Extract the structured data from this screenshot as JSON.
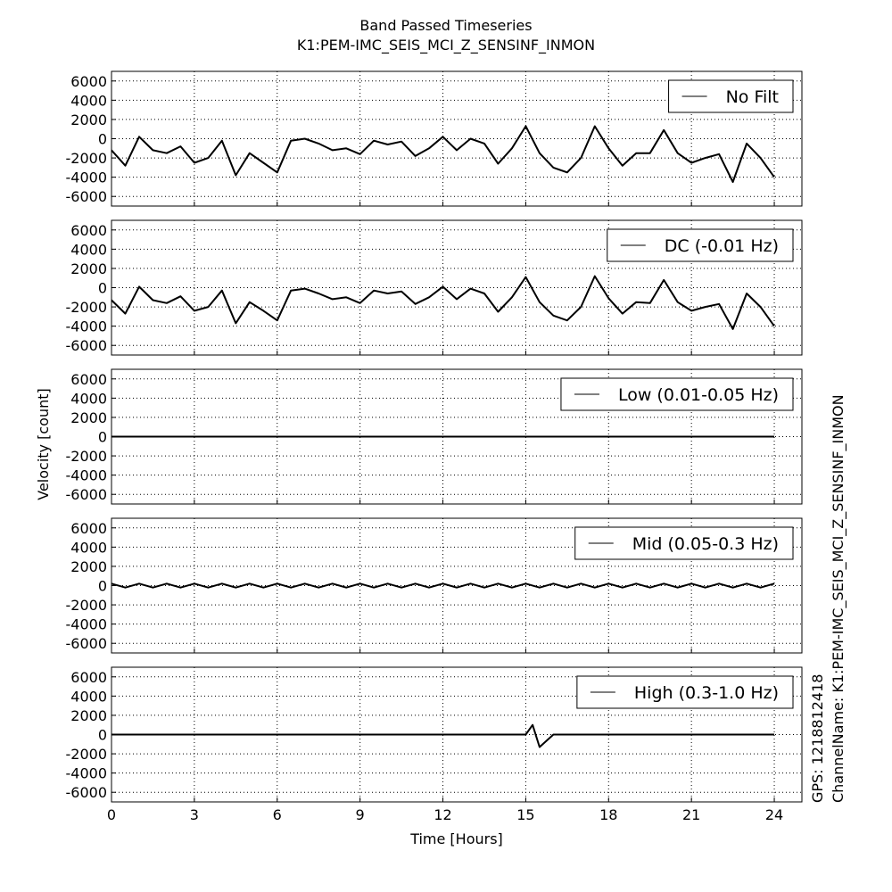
{
  "figure": {
    "title": "Band Passed Timeseries",
    "subtitle": "K1:PEM-IMC_SEIS_MCI_Z_SENSINF_INMON",
    "y_label": "Velocity [count]",
    "x_label": "Time [Hours]",
    "gps_label": "GPS: 1218812418",
    "channel_label": "ChannelName: K1:PEM-IMC_SEIS_MCI_Z_SENSINF_INMON"
  },
  "chart_data": [
    {
      "type": "line",
      "x": [
        0,
        0.5,
        1,
        1.5,
        2,
        2.5,
        3,
        3.5,
        4,
        4.5,
        5,
        5.5,
        6,
        6.5,
        7,
        7.5,
        8,
        8.5,
        9,
        9.5,
        10,
        10.5,
        11,
        11.5,
        12,
        12.5,
        13,
        13.5,
        14,
        14.5,
        15,
        15.5,
        16,
        16.5,
        17,
        17.5,
        18,
        18.5,
        19,
        19.5,
        20,
        20.5,
        21,
        21.5,
        22,
        22.5,
        23,
        23.5,
        24
      ],
      "series": [
        {
          "name": "No Filt",
          "color": "#000000",
          "values": [
            -1200,
            -2800,
            200,
            -1200,
            -1500,
            -800,
            -2500,
            -2000,
            -200,
            -3800,
            -1500,
            -2500,
            -3500,
            -200,
            0,
            -500,
            -1200,
            -1000,
            -1600,
            -200,
            -600,
            -300,
            -1800,
            -1000,
            200,
            -1200,
            0,
            -500,
            -2600,
            -1000,
            1300,
            -1500,
            -3000,
            -3500,
            -2000,
            1300,
            -1000,
            -2800,
            -1500,
            -1500,
            900,
            -1500,
            -2500,
            -2000,
            -1600,
            -4500,
            -500,
            -2000,
            -4000
          ]
        }
      ],
      "xlim": [
        0,
        25
      ],
      "xticks": [
        0,
        3,
        6,
        9,
        12,
        15,
        18,
        21,
        24
      ],
      "ylim": [
        -7000,
        7000
      ],
      "yticks": [
        -6000,
        -4000,
        -2000,
        0,
        2000,
        4000,
        6000
      ],
      "grid": true,
      "legend": "upper right"
    },
    {
      "type": "line",
      "x": [
        0,
        0.5,
        1,
        1.5,
        2,
        2.5,
        3,
        3.5,
        4,
        4.5,
        5,
        5.5,
        6,
        6.5,
        7,
        7.5,
        8,
        8.5,
        9,
        9.5,
        10,
        10.5,
        11,
        11.5,
        12,
        12.5,
        13,
        13.5,
        14,
        14.5,
        15,
        15.5,
        16,
        16.5,
        17,
        17.5,
        18,
        18.5,
        19,
        19.5,
        20,
        20.5,
        21,
        21.5,
        22,
        22.5,
        23,
        23.5,
        24
      ],
      "series": [
        {
          "name": "DC (-0.01 Hz)",
          "color": "#000000",
          "values": [
            -1300,
            -2700,
            100,
            -1300,
            -1600,
            -900,
            -2400,
            -2000,
            -300,
            -3700,
            -1500,
            -2400,
            -3400,
            -300,
            -100,
            -600,
            -1200,
            -1000,
            -1600,
            -300,
            -600,
            -400,
            -1700,
            -1000,
            100,
            -1200,
            -100,
            -600,
            -2500,
            -1000,
            1100,
            -1500,
            -2900,
            -3400,
            -2000,
            1200,
            -1100,
            -2700,
            -1500,
            -1600,
            800,
            -1500,
            -2400,
            -2000,
            -1700,
            -4300,
            -600,
            -2000,
            -4000
          ]
        }
      ],
      "xlim": [
        0,
        25
      ],
      "xticks": [
        0,
        3,
        6,
        9,
        12,
        15,
        18,
        21,
        24
      ],
      "ylim": [
        -7000,
        7000
      ],
      "yticks": [
        -6000,
        -4000,
        -2000,
        0,
        2000,
        4000,
        6000
      ],
      "grid": true,
      "legend": "upper right"
    },
    {
      "type": "line",
      "x": [
        0,
        0.5,
        1,
        1.5,
        2,
        2.5,
        3,
        3.5,
        4,
        4.5,
        5,
        5.5,
        6,
        6.5,
        7,
        7.5,
        8,
        8.5,
        9,
        9.5,
        10,
        10.5,
        11,
        11.5,
        12,
        12.5,
        13,
        13.5,
        14,
        14.5,
        15,
        15.5,
        16,
        16.5,
        17,
        17.5,
        18,
        18.5,
        19,
        19.5,
        20,
        20.5,
        21,
        21.5,
        22,
        22.5,
        23,
        23.5,
        24
      ],
      "series": [
        {
          "name": "Low (0.01-0.05 Hz)",
          "color": "#000000",
          "values": [
            0,
            0,
            0,
            0,
            0,
            0,
            0,
            0,
            0,
            0,
            0,
            0,
            0,
            0,
            0,
            0,
            0,
            0,
            0,
            0,
            0,
            0,
            0,
            0,
            0,
            0,
            0,
            0,
            0,
            0,
            0,
            0,
            0,
            0,
            0,
            0,
            0,
            0,
            0,
            0,
            0,
            0,
            0,
            0,
            0,
            0,
            0,
            0,
            0
          ]
        }
      ],
      "xlim": [
        0,
        25
      ],
      "xticks": [
        0,
        3,
        6,
        9,
        12,
        15,
        18,
        21,
        24
      ],
      "ylim": [
        -7000,
        7000
      ],
      "yticks": [
        -6000,
        -4000,
        -2000,
        0,
        2000,
        4000,
        6000
      ],
      "grid": true,
      "legend": "upper right"
    },
    {
      "type": "line",
      "x": [
        0,
        0.5,
        1,
        1.5,
        2,
        2.5,
        3,
        3.5,
        4,
        4.5,
        5,
        5.5,
        6,
        6.5,
        7,
        7.5,
        8,
        8.5,
        9,
        9.5,
        10,
        10.5,
        11,
        11.5,
        12,
        12.5,
        13,
        13.5,
        14,
        14.5,
        15,
        15.5,
        16,
        16.5,
        17,
        17.5,
        18,
        18.5,
        19,
        19.5,
        20,
        20.5,
        21,
        21.5,
        22,
        22.5,
        23,
        23.5,
        24
      ],
      "series": [
        {
          "name": "Mid (0.05-0.3 Hz)",
          "color": "#000000",
          "values": [
            200,
            -200,
            200,
            -200,
            200,
            -200,
            200,
            -200,
            200,
            -200,
            200,
            -200,
            200,
            -200,
            200,
            -200,
            200,
            -200,
            200,
            -200,
            200,
            -200,
            200,
            -200,
            200,
            -200,
            200,
            -200,
            200,
            -200,
            200,
            -200,
            200,
            -200,
            200,
            -200,
            200,
            -200,
            200,
            -200,
            200,
            -200,
            200,
            -200,
            200,
            -200,
            200,
            -200,
            200
          ]
        }
      ],
      "xlim": [
        0,
        25
      ],
      "xticks": [
        0,
        3,
        6,
        9,
        12,
        15,
        18,
        21,
        24
      ],
      "ylim": [
        -7000,
        7000
      ],
      "yticks": [
        -6000,
        -4000,
        -2000,
        0,
        2000,
        4000,
        6000
      ],
      "grid": true,
      "legend": "upper right"
    },
    {
      "type": "line",
      "x": [
        0,
        0.5,
        1,
        1.5,
        2,
        2.5,
        3,
        3.5,
        4,
        4.5,
        5,
        5.5,
        6,
        6.5,
        7,
        7.5,
        8,
        8.5,
        9,
        9.5,
        10,
        10.5,
        11,
        11.5,
        12,
        12.5,
        13,
        13.5,
        14,
        14.5,
        15,
        15.25,
        15.5,
        16,
        16.5,
        17,
        17.5,
        18,
        18.5,
        19,
        19.5,
        20,
        20.5,
        21,
        21.5,
        22,
        22.5,
        23,
        23.5,
        24
      ],
      "series": [
        {
          "name": "High (0.3-1.0 Hz)",
          "color": "#000000",
          "values": [
            0,
            0,
            0,
            0,
            0,
            0,
            0,
            0,
            0,
            0,
            0,
            0,
            0,
            0,
            0,
            0,
            0,
            0,
            0,
            0,
            0,
            0,
            0,
            0,
            0,
            0,
            0,
            0,
            0,
            0,
            0,
            1000,
            -1300,
            0,
            0,
            0,
            0,
            0,
            0,
            0,
            0,
            0,
            0,
            0,
            0,
            0,
            0,
            0,
            0,
            0
          ]
        }
      ],
      "xlim": [
        0,
        25
      ],
      "xticks": [
        0,
        3,
        6,
        9,
        12,
        15,
        18,
        21,
        24
      ],
      "ylim": [
        -7000,
        7000
      ],
      "yticks": [
        -6000,
        -4000,
        -2000,
        0,
        2000,
        4000,
        6000
      ],
      "grid": true,
      "legend": "upper right"
    }
  ]
}
